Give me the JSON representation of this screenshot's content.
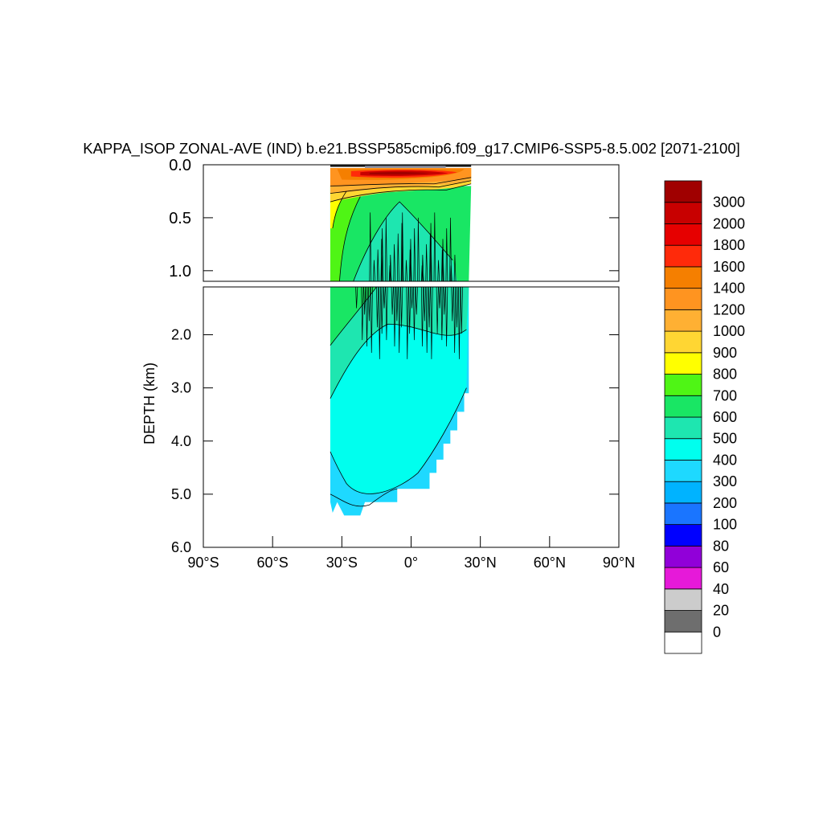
{
  "chart_data": {
    "type": "heatmap",
    "title": "KAPPA_ISOP ZONAL-AVE (IND) b.e21.BSSP585cmip6.f09_g17.CMIP6-SSP5-8.5.002 [2071-2100]",
    "ylabel": "DEPTH (km)",
    "xlabel": "",
    "xlim": [
      -90,
      90
    ],
    "x_ticks": [
      {
        "value": -90,
        "label": "90°S"
      },
      {
        "value": -60,
        "label": "60°S"
      },
      {
        "value": -30,
        "label": "30°S"
      },
      {
        "value": 0,
        "label": "0°"
      },
      {
        "value": 30,
        "label": "30°N"
      },
      {
        "value": 60,
        "label": "60°N"
      },
      {
        "value": 90,
        "label": "90°N"
      }
    ],
    "upper_panel": {
      "ylim": [
        0,
        1.1
      ],
      "y_ticks": [
        {
          "value": 0.0,
          "label": "0.0"
        },
        {
          "value": 0.5,
          "label": "0.5"
        },
        {
          "value": 1.0,
          "label": "1.0"
        }
      ]
    },
    "lower_panel": {
      "ylim": [
        1.1,
        6.0
      ],
      "y_ticks": [
        {
          "value": 2.0,
          "label": "2.0"
        },
        {
          "value": 3.0,
          "label": "3.0"
        },
        {
          "value": 4.0,
          "label": "4.0"
        },
        {
          "value": 5.0,
          "label": "5.0"
        },
        {
          "value": 6.0,
          "label": "6.0"
        }
      ]
    },
    "colorbar": {
      "levels": [
        "0",
        "20",
        "40",
        "60",
        "80",
        "100",
        "200",
        "300",
        "400",
        "500",
        "600",
        "700",
        "800",
        "900",
        "1000",
        "1200",
        "1400",
        "1600",
        "1800",
        "2000",
        "3000"
      ],
      "colors": [
        "#ffffff",
        "#6e6e6e",
        "#cccccc",
        "#e619d9",
        "#9100d9",
        "#0000ff",
        "#1a75ff",
        "#00b3ff",
        "#1ed9ff",
        "#00ffee",
        "#1ee6b0",
        "#19e664",
        "#4ff515",
        "#ffff00",
        "#ffd633",
        "#ffb033",
        "#ff9420",
        "#f57f00",
        "#ff2a0a",
        "#e60000",
        "#c80000",
        "#a00000"
      ]
    },
    "regions": [
      {
        "value_class": "300-400",
        "lat_range": [
          -35,
          1
        ],
        "depth_range": [
          4.2,
          5.4
        ]
      },
      {
        "value_class": "400-500",
        "lat_range": [
          -35,
          25
        ],
        "depth_range": [
          1.1,
          4.8
        ]
      },
      {
        "value_class": "500-600",
        "lat_range": [
          -35,
          25
        ],
        "depth_range": [
          0.8,
          1.8
        ]
      },
      {
        "value_class": "600-700",
        "lat_range": [
          -35,
          25
        ],
        "depth_range": [
          0.3,
          1.1
        ]
      },
      {
        "value_class": "700-800",
        "lat_range": [
          -35,
          -20
        ],
        "depth_range": [
          0.5,
          1.1
        ]
      },
      {
        "value_class": "800-900",
        "lat_range": [
          -35,
          -30
        ],
        "depth_range": [
          0.2,
          0.5
        ]
      },
      {
        "value_class": "1000-1400",
        "lat_range": [
          -35,
          25
        ],
        "depth_range": [
          0.02,
          0.3
        ]
      },
      {
        "value_class": "1400-3000",
        "lat_range": [
          -28,
          20
        ],
        "depth_range": [
          0.05,
          0.15
        ]
      },
      {
        "value_class": "0-20",
        "lat_range": [
          -35,
          26
        ],
        "depth_range": [
          0,
          0.03
        ]
      }
    ],
    "data_extent": {
      "lat_range": [
        -35,
        26
      ],
      "max_depth": 5.4
    },
    "grid": false,
    "legend": "right"
  }
}
